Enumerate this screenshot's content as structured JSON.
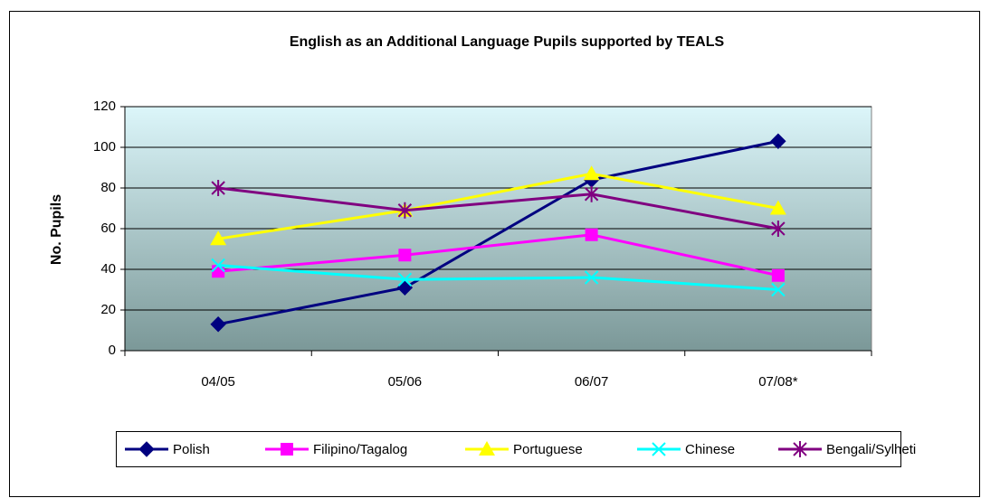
{
  "chart_data": {
    "type": "line",
    "title": "English as an Additional Language Pupils supported by TEALS",
    "y_label": "No. Pupils",
    "categories": [
      "04/05",
      "05/06",
      "06/07",
      "07/08*"
    ],
    "series": [
      {
        "name": "Polish",
        "color": "#000080",
        "marker": "diamond",
        "values": [
          13,
          31,
          84,
          103
        ]
      },
      {
        "name": "Filipino/Tagalog",
        "color": "#ff00ff",
        "marker": "square",
        "values": [
          39,
          47,
          57,
          37
        ]
      },
      {
        "name": "Portuguese",
        "color": "#ffff00",
        "marker": "triangle",
        "values": [
          55,
          69,
          87,
          70
        ]
      },
      {
        "name": "Chinese",
        "color": "#00ffff",
        "marker": "x",
        "values": [
          42,
          35,
          36,
          30
        ]
      },
      {
        "name": "Bengali/Sylheti",
        "color": "#800080",
        "marker": "star",
        "values": [
          80,
          69,
          77,
          60
        ]
      }
    ],
    "ylim": [
      0,
      120
    ],
    "yticks": [
      0,
      20,
      40,
      60,
      80,
      100,
      120
    ],
    "grid": true,
    "legend": "bottom"
  }
}
